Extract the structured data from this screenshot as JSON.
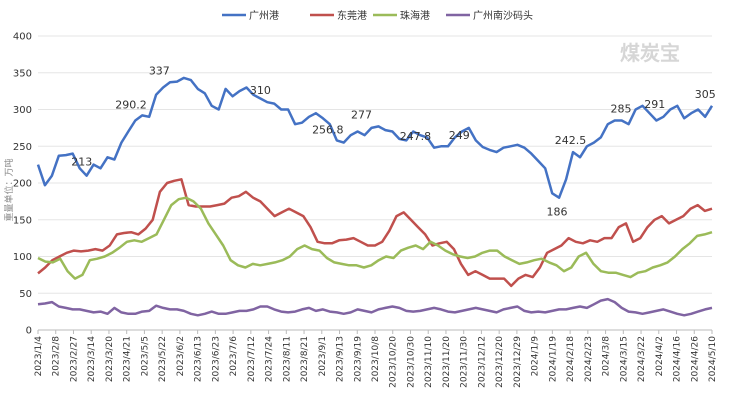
{
  "chart_data": {
    "type": "line",
    "title": "",
    "xlabel": "",
    "ylabel": "重量单位：万吨",
    "ylim": [
      0,
      400
    ],
    "yticks": [
      0,
      50,
      100,
      150,
      200,
      250,
      300,
      350,
      400
    ],
    "grid": true,
    "legend_position": "top-center",
    "watermark": "煤炭宝",
    "x_tick_labels": [
      "2023/1/4",
      "2023/2/8",
      "2023/2/27",
      "2023/3/14",
      "2023/3/20",
      "2023/4/21",
      "2023/5/5",
      "2023/5/22",
      "2023/6/2",
      "2023/6/13",
      "2023/6/23",
      "2023/7/6",
      "2023/7/12",
      "2023/7/24",
      "2023/8/11",
      "2023/8/21",
      "2023/9/1",
      "2023/9/13",
      "2023/9/19",
      "2023/10/8",
      "2023/10/20",
      "2023/10/30",
      "2023/11/10",
      "2023/11/20",
      "2023/11/30",
      "2023/12/12",
      "2023/12/20",
      "2023/12/29",
      "2024/1/9",
      "2024/1/19",
      "2024/2/18",
      "2024/2/23",
      "2024/3/8",
      "2024/3/15",
      "2024/3/22",
      "2024/4/2",
      "2024/4/16",
      "2024/4/26",
      "2024/5/10"
    ],
    "series": [
      {
        "name": "广州港",
        "color": "#4472c4",
        "values": [
          225,
          197,
          210,
          237,
          238,
          240,
          220,
          210,
          225,
          220,
          235,
          232,
          255,
          270,
          285,
          292,
          290,
          320,
          330,
          337,
          338,
          343,
          340,
          328,
          322,
          305,
          300,
          328,
          318,
          325,
          330,
          320,
          315,
          310,
          308,
          300,
          300,
          280,
          282,
          290,
          295,
          288,
          280,
          258,
          255,
          265,
          270,
          265,
          275,
          277,
          272,
          270,
          260,
          258,
          270,
          265,
          262,
          248,
          250,
          250,
          262,
          270,
          275,
          258,
          249,
          245,
          242,
          248,
          250,
          252,
          248,
          240,
          230,
          220,
          186,
          180,
          205,
          242,
          235,
          250,
          255,
          262,
          280,
          285,
          285,
          280,
          300,
          305,
          295,
          285,
          290,
          300,
          305,
          288,
          295,
          300,
          290,
          305
        ]
      },
      {
        "name": "东莞港",
        "color": "#c0504d",
        "values": [
          77,
          85,
          95,
          100,
          105,
          108,
          107,
          108,
          110,
          108,
          115,
          130,
          132,
          133,
          130,
          138,
          150,
          188,
          200,
          203,
          205,
          170,
          168,
          168,
          168,
          170,
          172,
          180,
          182,
          188,
          180,
          175,
          165,
          155,
          160,
          165,
          160,
          155,
          140,
          120,
          118,
          118,
          122,
          123,
          125,
          120,
          115,
          115,
          120,
          135,
          155,
          160,
          150,
          140,
          130,
          115,
          118,
          120,
          110,
          90,
          75,
          80,
          75,
          70,
          70,
          70,
          60,
          70,
          75,
          72,
          85,
          105,
          110,
          115,
          125,
          120,
          118,
          122,
          120,
          125,
          125,
          140,
          145,
          120,
          125,
          140,
          150,
          155,
          145,
          150,
          155,
          165,
          170,
          162,
          165
        ]
      },
      {
        "name": "珠海港",
        "color": "#9bbb59",
        "values": [
          98,
          93,
          92,
          97,
          80,
          70,
          75,
          95,
          97,
          100,
          105,
          112,
          120,
          122,
          120,
          125,
          130,
          150,
          170,
          178,
          180,
          175,
          165,
          145,
          130,
          115,
          95,
          88,
          85,
          90,
          88,
          90,
          92,
          95,
          100,
          110,
          115,
          110,
          108,
          98,
          92,
          90,
          88,
          88,
          85,
          88,
          95,
          100,
          98,
          108,
          112,
          115,
          110,
          120,
          115,
          108,
          103,
          100,
          98,
          100,
          105,
          108,
          108,
          100,
          95,
          90,
          92,
          95,
          97,
          92,
          88,
          80,
          85,
          100,
          105,
          90,
          80,
          78,
          78,
          75,
          72,
          78,
          80,
          85,
          88,
          92,
          100,
          110,
          118,
          128,
          130,
          133
        ]
      },
      {
        "name": "广州南沙码头",
        "color": "#8064a2",
        "values": [
          35,
          36,
          38,
          32,
          30,
          28,
          28,
          26,
          24,
          25,
          22,
          30,
          24,
          22,
          22,
          25,
          26,
          33,
          30,
          28,
          28,
          26,
          22,
          20,
          22,
          25,
          22,
          22,
          24,
          26,
          26,
          28,
          32,
          32,
          28,
          25,
          24,
          25,
          28,
          30,
          26,
          28,
          25,
          24,
          22,
          24,
          28,
          26,
          24,
          28,
          30,
          32,
          30,
          26,
          25,
          26,
          28,
          30,
          28,
          25,
          24,
          26,
          28,
          30,
          28,
          26,
          24,
          28,
          30,
          32,
          26,
          24,
          25,
          24,
          26,
          28,
          28,
          30,
          32,
          30,
          35,
          40,
          42,
          38,
          30,
          25,
          24,
          22,
          24,
          26,
          28,
          25,
          22,
          20,
          22,
          25,
          28,
          30
        ]
      }
    ],
    "annotations": [
      {
        "series": "广州港",
        "label": "213",
        "x_frac": 0.065,
        "value": 213
      },
      {
        "series": "广州港",
        "label": "290.2",
        "x_frac": 0.138,
        "value": 290.2
      },
      {
        "series": "广州港",
        "label": "337",
        "x_frac": 0.18,
        "value": 337
      },
      {
        "series": "广州港",
        "label": "310",
        "x_frac": 0.33,
        "value": 310
      },
      {
        "series": "广州港",
        "label": "256.8",
        "x_frac": 0.43,
        "value": 256.8
      },
      {
        "series": "广州港",
        "label": "277",
        "x_frac": 0.48,
        "value": 277
      },
      {
        "series": "广州港",
        "label": "247.8",
        "x_frac": 0.56,
        "value": 247.8
      },
      {
        "series": "广州港",
        "label": "249",
        "x_frac": 0.625,
        "value": 249
      },
      {
        "series": "广州港",
        "label": "186",
        "x_frac": 0.77,
        "value": 186
      },
      {
        "series": "广州港",
        "label": "242.5",
        "x_frac": 0.79,
        "value": 242.5
      },
      {
        "series": "广州港",
        "label": "285",
        "x_frac": 0.865,
        "value": 285
      },
      {
        "series": "广州港",
        "label": "291",
        "x_frac": 0.915,
        "value": 291
      },
      {
        "series": "广州港",
        "label": "305",
        "x_frac": 0.99,
        "value": 305
      }
    ]
  }
}
